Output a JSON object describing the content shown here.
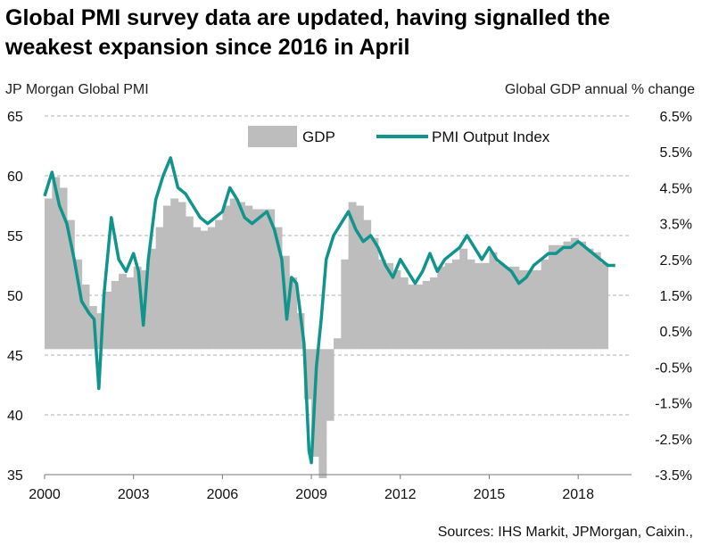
{
  "title": "Global PMI survey data are updated, having signalled the weakest expansion since 2016 in April",
  "source": "Sources: IHS Markit, JPMorgan, Caixin.,",
  "colors": {
    "gdp": "#bdbdbd",
    "pmi": "#11948b",
    "grid": "#b0b0b0"
  },
  "chart_data": {
    "type": "line",
    "ylabel_left": "JP Morgan  Global  PMI",
    "ylabel_right": "Global  GDP  annual % change",
    "ylim_left": [
      35,
      65
    ],
    "ylim_right": [
      -3.5,
      6.5
    ],
    "grid": true,
    "legend_position": "top",
    "x_ticks": [
      2000,
      2003,
      2006,
      2009,
      2012,
      2015,
      2018
    ],
    "y_ticks_left": [
      "65",
      "60",
      "55",
      "50",
      "45",
      "40",
      "35"
    ],
    "y_ticks_left_values": [
      65,
      60,
      55,
      50,
      45,
      40,
      35
    ],
    "y_ticks_right": [
      "6.5%",
      "5.5%",
      "4.5%",
      "3.5%",
      "2.5%",
      "1.5%",
      "0.5%",
      "-0.5%",
      "-1.5%",
      "-2.5%",
      "-3.5%"
    ],
    "y_ticks_right_values": [
      6.5,
      5.5,
      4.5,
      3.5,
      2.5,
      1.5,
      0.5,
      -0.5,
      -1.5,
      -2.5,
      -3.5
    ],
    "series": [
      {
        "name": "GDP",
        "kind": "bar",
        "axis": "right",
        "x": [
          2000.0,
          2000.25,
          2000.5,
          2000.75,
          2001.0,
          2001.25,
          2001.5,
          2001.75,
          2002.0,
          2002.25,
          2002.5,
          2002.75,
          2003.0,
          2003.25,
          2003.5,
          2003.75,
          2004.0,
          2004.25,
          2004.5,
          2004.75,
          2005.0,
          2005.25,
          2005.5,
          2005.75,
          2006.0,
          2006.25,
          2006.5,
          2006.75,
          2007.0,
          2007.25,
          2007.5,
          2007.75,
          2008.0,
          2008.25,
          2008.5,
          2008.75,
          2009.0,
          2009.25,
          2009.5,
          2009.75,
          2010.0,
          2010.25,
          2010.5,
          2010.75,
          2011.0,
          2011.25,
          2011.5,
          2011.75,
          2012.0,
          2012.25,
          2012.5,
          2012.75,
          2013.0,
          2013.25,
          2013.5,
          2013.75,
          2014.0,
          2014.25,
          2014.5,
          2014.75,
          2015.0,
          2015.25,
          2015.5,
          2015.75,
          2016.0,
          2016.25,
          2016.5,
          2016.75,
          2017.0,
          2017.25,
          2017.5,
          2017.75,
          2018.0,
          2018.25,
          2018.5,
          2018.75
        ],
        "values": [
          4.2,
          4.8,
          4.5,
          3.6,
          2.5,
          1.8,
          1.2,
          1.0,
          1.6,
          1.9,
          2.1,
          2.0,
          2.3,
          2.2,
          2.8,
          3.4,
          4.0,
          4.2,
          4.1,
          3.7,
          3.4,
          3.3,
          3.4,
          3.6,
          4.0,
          4.2,
          4.1,
          4.0,
          3.9,
          3.9,
          3.9,
          3.4,
          2.6,
          2.0,
          1.0,
          -1.4,
          -3.0,
          -3.6,
          -2.0,
          0.3,
          2.5,
          4.1,
          4.0,
          3.6,
          3.1,
          2.5,
          2.4,
          2.2,
          2.0,
          1.8,
          1.8,
          1.9,
          2.0,
          2.3,
          2.4,
          2.5,
          2.8,
          2.5,
          2.4,
          2.4,
          2.7,
          2.4,
          2.3,
          2.3,
          2.2,
          2.2,
          2.2,
          2.5,
          2.9,
          2.9,
          3.0,
          3.1,
          3.0,
          2.8,
          2.7,
          2.4
        ]
      },
      {
        "name": "PMI Output Index",
        "kind": "line",
        "axis": "left",
        "x": [
          2000.0,
          2000.25,
          2000.5,
          2000.75,
          2001.0,
          2001.25,
          2001.5,
          2001.67,
          2001.83,
          2002.0,
          2002.25,
          2002.5,
          2002.75,
          2003.0,
          2003.17,
          2003.33,
          2003.5,
          2003.75,
          2004.0,
          2004.25,
          2004.5,
          2004.75,
          2005.0,
          2005.25,
          2005.5,
          2005.75,
          2006.0,
          2006.25,
          2006.5,
          2006.75,
          2007.0,
          2007.25,
          2007.5,
          2007.75,
          2008.0,
          2008.17,
          2008.33,
          2008.5,
          2008.75,
          2008.92,
          2009.0,
          2009.17,
          2009.33,
          2009.5,
          2009.75,
          2010.0,
          2010.25,
          2010.5,
          2010.75,
          2011.0,
          2011.25,
          2011.5,
          2011.75,
          2012.0,
          2012.25,
          2012.5,
          2012.75,
          2013.0,
          2013.25,
          2013.5,
          2013.75,
          2014.0,
          2014.25,
          2014.5,
          2014.75,
          2015.0,
          2015.25,
          2015.5,
          2015.75,
          2016.0,
          2016.25,
          2016.5,
          2016.75,
          2017.0,
          2017.25,
          2017.5,
          2017.75,
          2018.0,
          2018.25,
          2018.5,
          2018.75,
          2019.0,
          2019.25
        ],
        "values": [
          58.3,
          60.3,
          57.5,
          56.0,
          53.0,
          49.5,
          48.5,
          48.0,
          42.2,
          50.0,
          56.5,
          53.0,
          52.0,
          53.5,
          52.0,
          47.5,
          53.0,
          58.0,
          60.0,
          61.5,
          59.0,
          58.5,
          57.5,
          56.5,
          56.0,
          56.5,
          57.0,
          59.0,
          58.0,
          56.5,
          56.0,
          56.5,
          57.0,
          55.5,
          53.0,
          48.0,
          51.5,
          51.0,
          46.0,
          37.0,
          36.0,
          44.0,
          48.0,
          53.0,
          55.0,
          56.0,
          57.0,
          55.5,
          54.5,
          55.0,
          54.0,
          52.5,
          51.5,
          53.0,
          52.0,
          51.0,
          52.0,
          53.5,
          52.0,
          53.0,
          53.5,
          54.0,
          55.0,
          54.0,
          53.0,
          54.0,
          53.0,
          52.5,
          52.0,
          51.0,
          51.5,
          52.5,
          53.0,
          53.5,
          53.5,
          54.0,
          54.0,
          54.5,
          54.0,
          53.5,
          53.0,
          52.5,
          52.5
        ]
      }
    ]
  }
}
